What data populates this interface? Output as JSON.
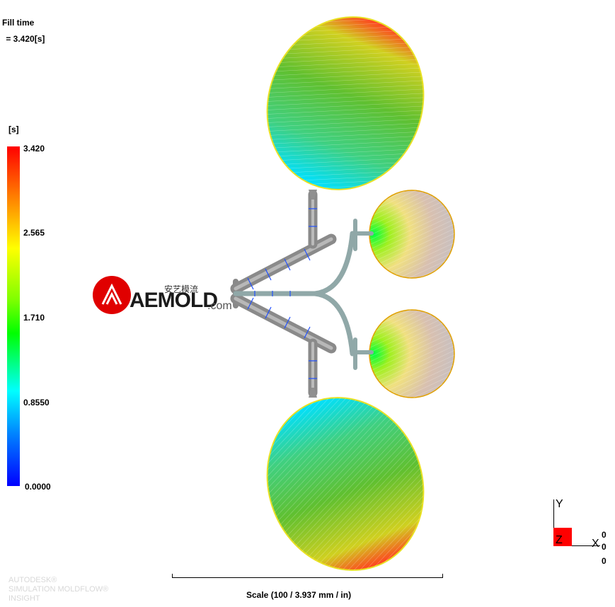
{
  "result": {
    "title": "Fill time",
    "value": " = 3.420[s]"
  },
  "legend": {
    "unit": "[s]",
    "ticks": [
      "3.420",
      "2.565",
      "1.710",
      "0.8550",
      "0.0000"
    ],
    "gradient_colors": [
      "#ff0000",
      "#ff8000",
      "#ffff00",
      "#00ff00",
      "#00ffff",
      "#0000ff"
    ]
  },
  "scale": {
    "label": "Scale (100 / 3.937 mm / in)"
  },
  "watermark": {
    "logo_text": "AEMOLD",
    "logo_suffix": ".com",
    "logo_chinese": "安艺模流"
  },
  "branding": {
    "line1": "AUTODESK®",
    "line2": "SIMULATION MOLDFLOW®",
    "line3": "INSIGHT"
  },
  "triad": {
    "y_label": "Y",
    "x_label": "X",
    "z_label": "Z",
    "values": [
      "0",
      "0",
      "0"
    ]
  }
}
